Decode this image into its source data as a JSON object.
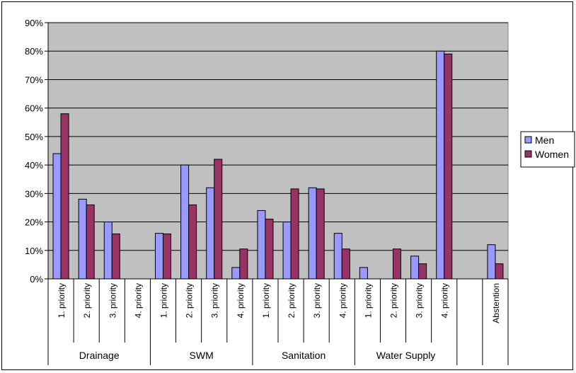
{
  "chart_data": {
    "type": "bar",
    "title": "",
    "xlabel": "",
    "ylabel": "",
    "ylim": [
      0,
      0.9
    ],
    "yticks": [
      "0%",
      "10%",
      "20%",
      "30%",
      "40%",
      "50%",
      "60%",
      "70%",
      "80%",
      "90%"
    ],
    "grid": true,
    "legend": "right",
    "plot_background": "#c0c0c0",
    "categories": [
      {
        "label": "1. priority",
        "group": "Drainage"
      },
      {
        "label": "2. priority",
        "group": "Drainage"
      },
      {
        "label": "3. priority",
        "group": "Drainage"
      },
      {
        "label": "4. priority",
        "group": "Drainage"
      },
      {
        "label": "1. priority",
        "group": "SWM"
      },
      {
        "label": "2. priority",
        "group": "SWM"
      },
      {
        "label": "3. priority",
        "group": "SWM"
      },
      {
        "label": "4. priority",
        "group": "SWM"
      },
      {
        "label": "1. priority",
        "group": "Sanitation"
      },
      {
        "label": "2. priority",
        "group": "Sanitation"
      },
      {
        "label": "3. priority",
        "group": "Sanitation"
      },
      {
        "label": "4. priority",
        "group": "Sanitation"
      },
      {
        "label": "1. priority",
        "group": "Water Supply"
      },
      {
        "label": "2. priority",
        "group": "Water Supply"
      },
      {
        "label": "3. priority",
        "group": "Water Supply"
      },
      {
        "label": "4. priority",
        "group": "Water Supply"
      },
      {
        "label": "",
        "group": ""
      },
      {
        "label": "Abstention",
        "group": ""
      }
    ],
    "groups": [
      "Drainage",
      "SWM",
      "Sanitation",
      "Water Supply"
    ],
    "series": [
      {
        "name": "Men",
        "color": "#9999ff",
        "values": [
          0.44,
          0.28,
          0.2,
          0,
          0.16,
          0.4,
          0.32,
          0.04,
          0.24,
          0.2,
          0.32,
          0.16,
          0.04,
          0,
          0.08,
          0.8,
          null,
          0.12
        ]
      },
      {
        "name": "Women",
        "color": "#993366",
        "values": [
          0.58,
          0.26,
          0.158,
          0,
          0.158,
          0.26,
          0.42,
          0.105,
          0.21,
          0.316,
          0.316,
          0.105,
          0,
          0.105,
          0.053,
          0.79,
          null,
          0.053
        ]
      }
    ]
  }
}
